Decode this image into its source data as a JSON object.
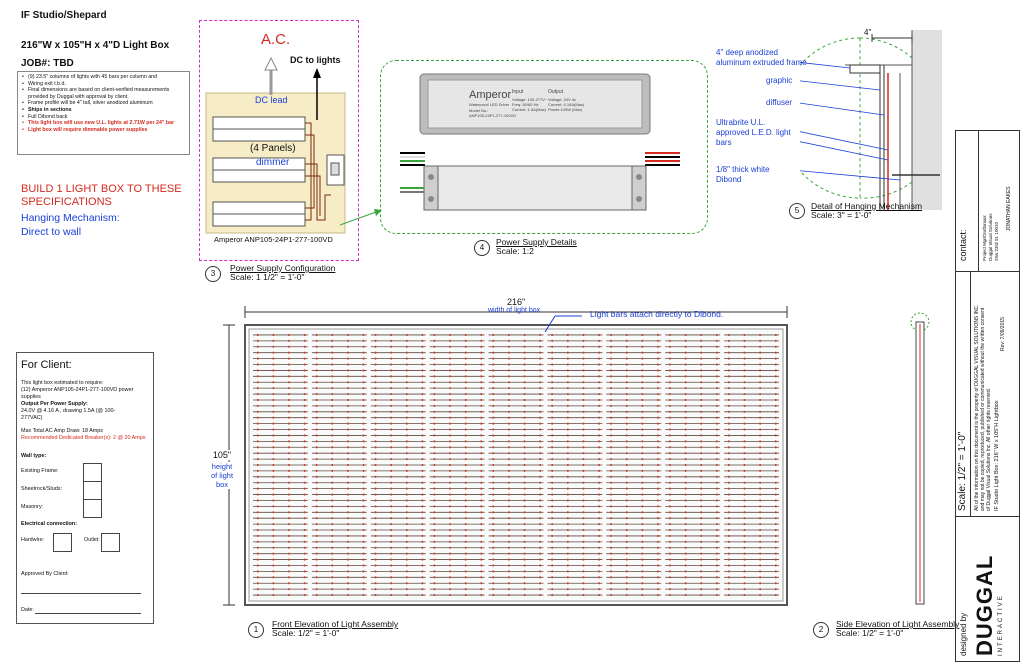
{
  "header": {
    "project": "IF Studio/Shepard",
    "size": "216\"W x 105\"H x 4\"D Light Box",
    "job": "JOB#: TBD"
  },
  "notes": [
    "(9) 23.5\" columns of lights with 45 bars per column and",
    "Wiring exit t.b.d.",
    "Final dimensions are based on client-verified measurements provided by Duggal with approval by client.",
    "Frame profile will be 4\" tall, silver anodized aluminum",
    "Ships in sections",
    "Full Dibond back",
    "This light box will use new U.L. lights at 2.71W per 24\" bar",
    "Light box will require dimmable power supplies"
  ],
  "spec": {
    "build": "BUILD 1 LIGHT BOX TO THESE SPECIFICATIONS",
    "hanging_label": "Hanging Mechanism:",
    "hanging_value": "Direct to wall"
  },
  "client": {
    "title": "For Client:",
    "estimate": "This light box estimated to require:",
    "units": "(12) Amperor ANP105-24P1-277-100VD power supplies",
    "output_label": "Output Per Power Supply:",
    "output_value": "24.0V @ 4.16 A , drawing 1.5A (@ 100-277VAC)",
    "max_draw": "Max Total AC Amp Draw: 18 Amps",
    "breakers": "Recommended Dedicated Breaker(s): 2 @ 20 Amps",
    "wall_type": "Wall type:",
    "existing_frame": "Existing Frame:",
    "sheetrock": "Sheetrock/Studs:",
    "masonry": "Masonry:",
    "electrical": "Electrical connection:",
    "hardwire": "Hardwire:",
    "outlet": "Outlet:",
    "approved": "Approved By Client:",
    "date": "Date:"
  },
  "detail3": {
    "num": "3",
    "title": "Power Supply Configuration",
    "scale": "Scale: 1 1/2\" = 1'-0\"",
    "ac": "A.C.",
    "dc_to_lights": "DC to lights",
    "dc_lead": "DC lead",
    "panels": "(4 Panels)",
    "dimmer": "dimmer",
    "model": "Amperor ANP105-24P1-277-100VD"
  },
  "detail4": {
    "num": "4",
    "title": "Power Supply Details",
    "scale": "Scale: 1:2",
    "brand": "Amperor",
    "sub": "Waterproof LED Driver",
    "model_label": "Model No.:",
    "model": "ANP105-24P1-277-100VD",
    "input_label": "Input",
    "output_label": "Output",
    "voltage_in": "Voltage: 100-277V~",
    "freq": "Freq: 50/60 Hz",
    "current_in": "Current: 1.5A(Max)",
    "voltage_out": "Voltage: 24V dc",
    "current_out": "Current: 4.16A(Max)",
    "power_out": "Power:100W (Max)"
  },
  "detail5": {
    "num": "5",
    "title": "Detail of Hanging Mechanism",
    "scale": "Scale: 3\" = 1'-0\"",
    "depth": "4\"",
    "frame": "4\" deep anodized aluminum extruded frame",
    "graphic": "graphic",
    "diffuser": "diffuser",
    "lights": "Ultrabrite U.L. approved L.E.D. light bars",
    "dibond": "1/8\" thick white Dibond"
  },
  "detail1": {
    "num": "1",
    "title": "Front Elevation of Light Assembly",
    "scale": "Scale: 1/2\" = 1'-0\"",
    "width": "216\"",
    "width_label": "width of light box",
    "height": "105\"",
    "height_label": "height of light box",
    "callout": "Light bars attach directly to Dibond."
  },
  "detail2": {
    "num": "2",
    "title": "Side Elevation of Light Assembly",
    "scale": "Scale: 1/2\" = 1'-0\""
  },
  "title_block": {
    "designed_by": "designed by",
    "brand": "DUGGAL",
    "brand_sub": "INTERACTIVE",
    "scale": "Scale: 1/2\" = 1'-0\"",
    "rev": "Rev: 7/09/2015",
    "project_line": "IF Studio Light Box: 216\" W x 105\"H Lightbox",
    "legal1": "All of the information on this document is the property of DUGGAL VISUAL SOLUTIONS INC.",
    "legal2": "and may not be copied, reproduced, published or communicated without the written consent",
    "legal3": "of Duggal Visual Solutions Inc. All other rights reserved.",
    "contact": "contact:",
    "manager_label": "Project Mgr/Draftsman:",
    "manager_name": "Duggal Visual Solutions",
    "address": "29w 23rd St. 10010",
    "sales": "JONATHAN EAKES"
  },
  "colors": {
    "red": "#d42a20",
    "blue": "#1a3fd6",
    "panel": "#f6ecc5",
    "dashed_magenta": "#d030c8",
    "dashed_green": "#3aa53a"
  },
  "chart_data": {
    "columns": 9,
    "bars_per_column": 45
  }
}
